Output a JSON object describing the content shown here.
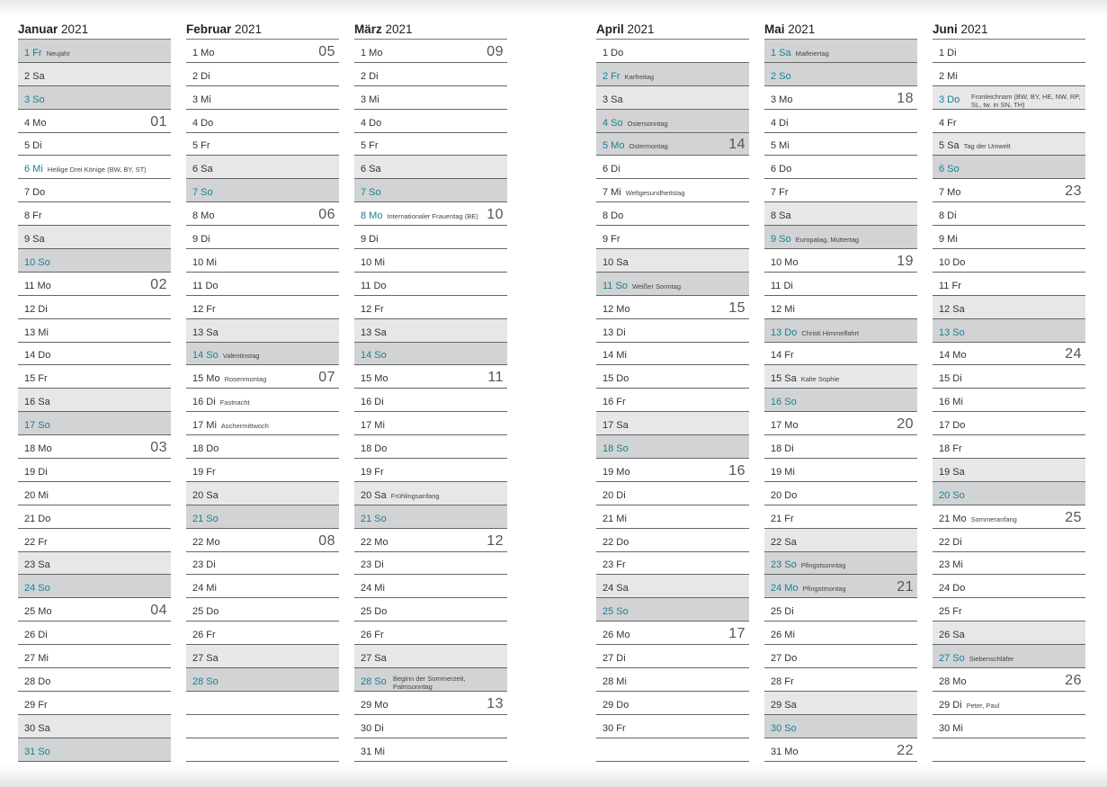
{
  "colors": {
    "saturday_bg": "#e6e7e8",
    "sunday_holiday_bg": "#d1d3d4",
    "holiday_text": "#1b7f94"
  },
  "months": [
    {
      "name": "Januar",
      "year": "2021",
      "days": [
        [
          "1 Fr",
          "Neujahr",
          "",
          "d"
        ],
        [
          "2 Sa",
          "",
          "",
          "sa"
        ],
        [
          "3 So",
          "",
          "",
          "so"
        ],
        [
          "4 Mo",
          "",
          "01",
          ""
        ],
        [
          "5 Di",
          "",
          "",
          ""
        ],
        [
          "6 Mi",
          "Heilige Drei Könige (BW, BY, ST)",
          "",
          "hw"
        ],
        [
          "7 Do",
          "",
          "",
          ""
        ],
        [
          "8 Fr",
          "",
          "",
          ""
        ],
        [
          "9 Sa",
          "",
          "",
          "sa"
        ],
        [
          "10 So",
          "",
          "",
          "so"
        ],
        [
          "11 Mo",
          "",
          "02",
          ""
        ],
        [
          "12 Di",
          "",
          "",
          ""
        ],
        [
          "13 Mi",
          "",
          "",
          ""
        ],
        [
          "14 Do",
          "",
          "",
          ""
        ],
        [
          "15 Fr",
          "",
          "",
          ""
        ],
        [
          "16 Sa",
          "",
          "",
          "sa"
        ],
        [
          "17 So",
          "",
          "",
          "so"
        ],
        [
          "18 Mo",
          "",
          "03",
          ""
        ],
        [
          "19 Di",
          "",
          "",
          ""
        ],
        [
          "20 Mi",
          "",
          "",
          ""
        ],
        [
          "21 Do",
          "",
          "",
          ""
        ],
        [
          "22 Fr",
          "",
          "",
          ""
        ],
        [
          "23 Sa",
          "",
          "",
          "sa"
        ],
        [
          "24 So",
          "",
          "",
          "so"
        ],
        [
          "25 Mo",
          "",
          "04",
          ""
        ],
        [
          "26 Di",
          "",
          "",
          ""
        ],
        [
          "27 Mi",
          "",
          "",
          ""
        ],
        [
          "28 Do",
          "",
          "",
          ""
        ],
        [
          "29 Fr",
          "",
          "",
          ""
        ],
        [
          "30 Sa",
          "",
          "",
          "sa"
        ],
        [
          "31 So",
          "",
          "",
          "so"
        ]
      ]
    },
    {
      "name": "Februar",
      "year": "2021",
      "days": [
        [
          "1 Mo",
          "",
          "05",
          ""
        ],
        [
          "2 Di",
          "",
          "",
          ""
        ],
        [
          "3 Mi",
          "",
          "",
          ""
        ],
        [
          "4 Do",
          "",
          "",
          ""
        ],
        [
          "5 Fr",
          "",
          "",
          ""
        ],
        [
          "6 Sa",
          "",
          "",
          "sa"
        ],
        [
          "7 So",
          "",
          "",
          "so"
        ],
        [
          "8 Mo",
          "",
          "06",
          ""
        ],
        [
          "9 Di",
          "",
          "",
          ""
        ],
        [
          "10 Mi",
          "",
          "",
          ""
        ],
        [
          "11 Do",
          "",
          "",
          ""
        ],
        [
          "12 Fr",
          "",
          "",
          ""
        ],
        [
          "13 Sa",
          "",
          "",
          "sa"
        ],
        [
          "14 So",
          "Valentinstag",
          "",
          "so"
        ],
        [
          "15 Mo",
          "Rosenmontag",
          "07",
          ""
        ],
        [
          "16 Di",
          "Fastnacht",
          "",
          ""
        ],
        [
          "17 Mi",
          "Aschermittwoch",
          "",
          ""
        ],
        [
          "18 Do",
          "",
          "",
          ""
        ],
        [
          "19 Fr",
          "",
          "",
          ""
        ],
        [
          "20 Sa",
          "",
          "",
          "sa"
        ],
        [
          "21 So",
          "",
          "",
          "so"
        ],
        [
          "22 Mo",
          "",
          "08",
          ""
        ],
        [
          "23 Di",
          "",
          "",
          ""
        ],
        [
          "24 Mi",
          "",
          "",
          ""
        ],
        [
          "25 Do",
          "",
          "",
          ""
        ],
        [
          "26 Fr",
          "",
          "",
          ""
        ],
        [
          "27 Sa",
          "",
          "",
          "sa"
        ],
        [
          "28 So",
          "",
          "",
          "so"
        ],
        [
          "",
          "",
          "",
          ""
        ],
        [
          "",
          "",
          "",
          ""
        ],
        [
          "",
          "",
          "",
          ""
        ]
      ]
    },
    {
      "name": "März",
      "year": "2021",
      "days": [
        [
          "1 Mo",
          "",
          "09",
          ""
        ],
        [
          "2 Di",
          "",
          "",
          ""
        ],
        [
          "3 Mi",
          "",
          "",
          ""
        ],
        [
          "4 Do",
          "",
          "",
          ""
        ],
        [
          "5 Fr",
          "",
          "",
          ""
        ],
        [
          "6 Sa",
          "",
          "",
          "sa"
        ],
        [
          "7 So",
          "",
          "",
          "so"
        ],
        [
          "8 Mo",
          "Internationaler Frauentag (BE)",
          "10",
          "hw"
        ],
        [
          "9 Di",
          "",
          "",
          ""
        ],
        [
          "10 Mi",
          "",
          "",
          ""
        ],
        [
          "11 Do",
          "",
          "",
          ""
        ],
        [
          "12 Fr",
          "",
          "",
          ""
        ],
        [
          "13 Sa",
          "",
          "",
          "sa"
        ],
        [
          "14 So",
          "",
          "",
          "so"
        ],
        [
          "15 Mo",
          "",
          "11",
          ""
        ],
        [
          "16 Di",
          "",
          "",
          ""
        ],
        [
          "17 Mi",
          "",
          "",
          ""
        ],
        [
          "18 Do",
          "",
          "",
          ""
        ],
        [
          "19 Fr",
          "",
          "",
          ""
        ],
        [
          "20 Sa",
          "Frühlingsanfang",
          "",
          "sa"
        ],
        [
          "21 So",
          "",
          "",
          "so"
        ],
        [
          "22 Mo",
          "",
          "12",
          ""
        ],
        [
          "23 Di",
          "",
          "",
          ""
        ],
        [
          "24 Mi",
          "",
          "",
          ""
        ],
        [
          "25 Do",
          "",
          "",
          ""
        ],
        [
          "26 Fr",
          "",
          "",
          ""
        ],
        [
          "27 Sa",
          "",
          "",
          "sa"
        ],
        [
          "28 So",
          "Beginn der Sommerzeit, Palmsonntag",
          "",
          "so"
        ],
        [
          "29 Mo",
          "",
          "13",
          ""
        ],
        [
          "30 Di",
          "",
          "",
          ""
        ],
        [
          "31 Mi",
          "",
          "",
          ""
        ]
      ]
    },
    {
      "name": "April",
      "year": "2021",
      "days": [
        [
          "1 Do",
          "",
          "",
          ""
        ],
        [
          "2 Fr",
          "Karfreitag",
          "",
          "d"
        ],
        [
          "3 Sa",
          "",
          "",
          "sa"
        ],
        [
          "4 So",
          "Ostersonntag",
          "",
          "so"
        ],
        [
          "5 Mo",
          "Ostermontag",
          "14",
          "d"
        ],
        [
          "6 Di",
          "",
          "",
          ""
        ],
        [
          "7 Mi",
          "Weltgesundheitstag",
          "",
          ""
        ],
        [
          "8 Do",
          "",
          "",
          ""
        ],
        [
          "9 Fr",
          "",
          "",
          ""
        ],
        [
          "10 Sa",
          "",
          "",
          "sa"
        ],
        [
          "11 So",
          "Weißer Sonntag",
          "",
          "so"
        ],
        [
          "12 Mo",
          "",
          "15",
          ""
        ],
        [
          "13 Di",
          "",
          "",
          ""
        ],
        [
          "14 Mi",
          "",
          "",
          ""
        ],
        [
          "15 Do",
          "",
          "",
          ""
        ],
        [
          "16 Fr",
          "",
          "",
          ""
        ],
        [
          "17 Sa",
          "",
          "",
          "sa"
        ],
        [
          "18 So",
          "",
          "",
          "so"
        ],
        [
          "19 Mo",
          "",
          "16",
          ""
        ],
        [
          "20 Di",
          "",
          "",
          ""
        ],
        [
          "21 Mi",
          "",
          "",
          ""
        ],
        [
          "22 Do",
          "",
          "",
          ""
        ],
        [
          "23 Fr",
          "",
          "",
          ""
        ],
        [
          "24 Sa",
          "",
          "",
          "sa"
        ],
        [
          "25 So",
          "",
          "",
          "so"
        ],
        [
          "26 Mo",
          "",
          "17",
          ""
        ],
        [
          "27 Di",
          "",
          "",
          ""
        ],
        [
          "28 Mi",
          "",
          "",
          ""
        ],
        [
          "29 Do",
          "",
          "",
          ""
        ],
        [
          "30 Fr",
          "",
          "",
          ""
        ],
        [
          "",
          "",
          "",
          ""
        ]
      ]
    },
    {
      "name": "Mai",
      "year": "2021",
      "days": [
        [
          "1 Sa",
          "Maifeiertag",
          "",
          "d"
        ],
        [
          "2 So",
          "",
          "",
          "so"
        ],
        [
          "3 Mo",
          "",
          "18",
          ""
        ],
        [
          "4 Di",
          "",
          "",
          ""
        ],
        [
          "5 Mi",
          "",
          "",
          ""
        ],
        [
          "6 Do",
          "",
          "",
          ""
        ],
        [
          "7 Fr",
          "",
          "",
          ""
        ],
        [
          "8 Sa",
          "",
          "",
          "sa"
        ],
        [
          "9 So",
          "Europatag, Muttertag",
          "",
          "so"
        ],
        [
          "10 Mo",
          "",
          "19",
          ""
        ],
        [
          "11 Di",
          "",
          "",
          ""
        ],
        [
          "12 Mi",
          "",
          "",
          ""
        ],
        [
          "13 Do",
          "Christi Himmelfahrt",
          "",
          "d"
        ],
        [
          "14 Fr",
          "",
          "",
          ""
        ],
        [
          "15 Sa",
          "Kalte Sophie",
          "",
          "sa"
        ],
        [
          "16 So",
          "",
          "",
          "so"
        ],
        [
          "17 Mo",
          "",
          "20",
          ""
        ],
        [
          "18 Di",
          "",
          "",
          ""
        ],
        [
          "19 Mi",
          "",
          "",
          ""
        ],
        [
          "20 Do",
          "",
          "",
          ""
        ],
        [
          "21 Fr",
          "",
          "",
          ""
        ],
        [
          "22 Sa",
          "",
          "",
          "sa"
        ],
        [
          "23 So",
          "Pfingstsonntag",
          "",
          "so"
        ],
        [
          "24 Mo",
          "Pfingstmontag",
          "21",
          "d"
        ],
        [
          "25 Di",
          "",
          "",
          ""
        ],
        [
          "26 Mi",
          "",
          "",
          ""
        ],
        [
          "27 Do",
          "",
          "",
          ""
        ],
        [
          "28 Fr",
          "",
          "",
          ""
        ],
        [
          "29 Sa",
          "",
          "",
          "sa"
        ],
        [
          "30 So",
          "",
          "",
          "so"
        ],
        [
          "31 Mo",
          "",
          "22",
          ""
        ]
      ]
    },
    {
      "name": "Juni",
      "year": "2021",
      "days": [
        [
          "1 Di",
          "",
          "",
          ""
        ],
        [
          "2 Mi",
          "",
          "",
          ""
        ],
        [
          "3 Do",
          "Fronleichnam (BW, BY, HE, NW, RP, SL, tw. in SN, TH)",
          "",
          "hl"
        ],
        [
          "4 Fr",
          "",
          "",
          ""
        ],
        [
          "5 Sa",
          "Tag der Umwelt",
          "",
          "sa"
        ],
        [
          "6 So",
          "",
          "",
          "so"
        ],
        [
          "7 Mo",
          "",
          "23",
          ""
        ],
        [
          "8 Di",
          "",
          "",
          ""
        ],
        [
          "9 Mi",
          "",
          "",
          ""
        ],
        [
          "10 Do",
          "",
          "",
          ""
        ],
        [
          "11 Fr",
          "",
          "",
          ""
        ],
        [
          "12 Sa",
          "",
          "",
          "sa"
        ],
        [
          "13 So",
          "",
          "",
          "so"
        ],
        [
          "14 Mo",
          "",
          "24",
          ""
        ],
        [
          "15 Di",
          "",
          "",
          ""
        ],
        [
          "16 Mi",
          "",
          "",
          ""
        ],
        [
          "17 Do",
          "",
          "",
          ""
        ],
        [
          "18 Fr",
          "",
          "",
          ""
        ],
        [
          "19 Sa",
          "",
          "",
          "sa"
        ],
        [
          "20 So",
          "",
          "",
          "so"
        ],
        [
          "21 Mo",
          "Sommeranfang",
          "25",
          ""
        ],
        [
          "22 Di",
          "",
          "",
          ""
        ],
        [
          "23 Mi",
          "",
          "",
          ""
        ],
        [
          "24 Do",
          "",
          "",
          ""
        ],
        [
          "25 Fr",
          "",
          "",
          ""
        ],
        [
          "26 Sa",
          "",
          "",
          "sa"
        ],
        [
          "27 So",
          "Siebenschläfer",
          "",
          "so"
        ],
        [
          "28 Mo",
          "",
          "26",
          ""
        ],
        [
          "29 Di",
          "Peter, Paul",
          "",
          ""
        ],
        [
          "30 Mi",
          "",
          "",
          ""
        ],
        [
          "",
          "",
          "",
          ""
        ]
      ]
    }
  ]
}
